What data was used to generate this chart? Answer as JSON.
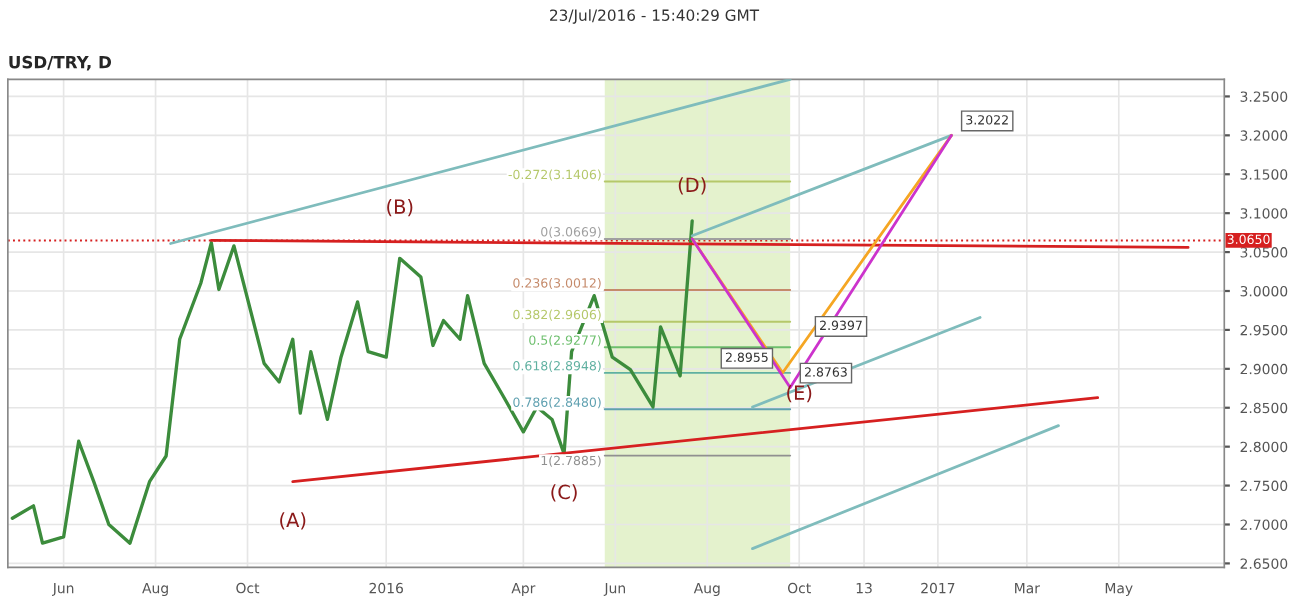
{
  "chart_data": {
    "type": "line",
    "title": "USD/TRY, D",
    "annotations": [
      "23/Jul/2016 - 15:40:29 GMT",
      {
        "text": "(A)",
        "x": "2015-10-31",
        "y": 2.755
      },
      {
        "text": "(B)",
        "x": "2016-01-10",
        "y": 3.062
      },
      {
        "text": "(C)",
        "x": "2016-04-28",
        "y": 2.791
      },
      {
        "text": "(D)",
        "x": "2016-07-22",
        "y": 3.09
      },
      {
        "text": "(E)",
        "x": "2016-10-01",
        "y": 2.823
      },
      {
        "text": "3.2022",
        "x": "2017-01-10",
        "y": 3.2
      },
      {
        "text": "2.9397",
        "x": "2016-10-05",
        "y": 2.936
      },
      {
        "text": "2.8955",
        "x": "2016-09-20",
        "y": 2.895
      },
      {
        "text": "2.8763",
        "x": "2016-09-25",
        "y": 2.876
      }
    ],
    "series": [
      {
        "color": "#3c8c3c",
        "x": [
          "2015-04-28",
          "2015-05-12",
          "2015-05-18",
          "2015-06-01",
          "2015-06-11",
          "2015-06-21",
          "2015-07-01",
          "2015-07-15",
          "2015-07-28",
          "2015-08-08",
          "2015-08-17",
          "2015-08-31",
          "2015-09-07",
          "2015-09-12",
          "2015-09-22",
          "2015-10-12",
          "2015-10-22",
          "2015-10-31",
          "2015-11-05",
          "2015-11-12",
          "2015-11-23",
          "2015-12-02",
          "2015-12-13",
          "2015-12-20",
          "2016-01-01",
          "2016-01-10",
          "2016-01-24",
          "2016-02-01",
          "2016-02-08",
          "2016-02-19",
          "2016-02-24",
          "2016-03-06",
          "2016-03-18",
          "2016-04-01",
          "2016-04-10",
          "2016-04-20",
          "2016-04-28",
          "2016-05-03",
          "2016-05-18",
          "2016-05-30",
          "2016-06-11",
          "2016-06-26",
          "2016-07-01",
          "2016-07-14",
          "2016-07-22"
        ],
        "values": [
          2.708,
          2.724,
          2.676,
          2.684,
          2.807,
          2.755,
          2.7,
          2.676,
          2.755,
          2.788,
          2.938,
          3.01,
          3.062,
          3.002,
          3.058,
          2.907,
          2.883,
          2.938,
          2.843,
          2.922,
          2.835,
          2.915,
          2.986,
          2.922,
          2.915,
          3.042,
          3.018,
          2.93,
          2.962,
          2.938,
          2.994,
          2.907,
          2.867,
          2.819,
          2.851,
          2.835,
          2.791,
          2.922,
          2.994,
          2.915,
          2.899,
          2.851,
          2.954,
          2.891,
          3.09
        ]
      },
      {
        "color": "#d62020",
        "x": [
          "2015-09-07",
          "2017-06-16"
        ],
        "values": [
          3.065,
          3.056
        ]
      },
      {
        "color": "#d62020",
        "x": [
          "2015-10-31",
          "2017-04-17"
        ],
        "values": [
          2.755,
          2.863
        ]
      },
      {
        "color": "#7fbcbc",
        "x": [
          "2015-08-11",
          "2016-09-25"
        ],
        "values": [
          3.061,
          3.272
        ]
      },
      {
        "color": "#7fbcbc",
        "x": [
          "2016-08-31",
          "2017-01-29"
        ],
        "values": [
          2.851,
          2.966
        ]
      },
      {
        "color": "#7fbcbc",
        "x": [
          "2016-08-31",
          "2017-03-22"
        ],
        "values": [
          2.669,
          2.827
        ]
      },
      {
        "color": "#7fbcbc",
        "x": [
          "2016-07-22",
          "2017-01-10"
        ],
        "values": [
          3.071,
          3.2
        ]
      },
      {
        "color": "#f5a623",
        "x": [
          "2016-07-22",
          "2016-09-20",
          "2017-01-10"
        ],
        "values": [
          3.067,
          2.895,
          3.2
        ]
      },
      {
        "color": "#cc33cc",
        "x": [
          "2016-07-22",
          "2016-09-25",
          "2017-01-10"
        ],
        "values": [
          3.067,
          2.876,
          3.2
        ]
      }
    ],
    "bands": [
      {
        "axis": "x",
        "from": "2016-05-25",
        "to": "2016-09-25",
        "color": "#d9ecb8"
      }
    ],
    "ref_lines": [
      {
        "axis": "y",
        "value": 3.065,
        "label": "3.0650",
        "color": "#d62020",
        "line_style": "dotted"
      },
      {
        "axis": "y",
        "value": 3.1406,
        "label": "-0.272(3.1406)",
        "color": "#b5c86a"
      },
      {
        "axis": "y",
        "value": 3.0669,
        "label": "0(3.0669)",
        "color": "#a0a0a0"
      },
      {
        "axis": "y",
        "value": 3.0012,
        "label": "0.236(3.0012)",
        "color": "#c58a6a"
      },
      {
        "axis": "y",
        "value": 2.9606,
        "label": "0.382(2.9606)",
        "color": "#b5c86a"
      },
      {
        "axis": "y",
        "value": 2.9277,
        "label": "0.5(2.9277)",
        "color": "#6dbf6d"
      },
      {
        "axis": "y",
        "value": 2.8948,
        "label": "0.618(2.8948)",
        "color": "#5fb0a0"
      },
      {
        "axis": "y",
        "value": 2.848,
        "label": "0.786(2.8480)",
        "color": "#5fa0b0"
      },
      {
        "axis": "y",
        "value": 2.7885,
        "label": "1(2.7885)",
        "color": "#909090"
      }
    ],
    "xlim": [
      "2015-04-25",
      "2017-07-10"
    ],
    "xticks": [
      {
        "value": "2015-06-01",
        "label": "Jun"
      },
      {
        "value": "2015-08-01",
        "label": "Aug"
      },
      {
        "value": "2015-10-01",
        "label": "Oct"
      },
      {
        "value": "2016-01-01",
        "label": "2016"
      },
      {
        "value": "2016-04-01",
        "label": "Apr"
      },
      {
        "value": "2016-06-01",
        "label": "Jun"
      },
      {
        "value": "2016-08-01",
        "label": "Aug"
      },
      {
        "value": "2016-10-01",
        "label": "Oct"
      },
      {
        "value": "2016-11-13",
        "label": "13"
      },
      {
        "value": "2017-01-01",
        "label": "2017"
      },
      {
        "value": "2017-03-01",
        "label": "Mar"
      },
      {
        "value": "2017-05-01",
        "label": "May"
      }
    ],
    "ylim": [
      2.645,
      3.272
    ],
    "yticks": [
      {
        "value": 2.65,
        "label": "2.6500"
      },
      {
        "value": 2.7,
        "label": "2.7000"
      },
      {
        "value": 2.75,
        "label": "2.7500"
      },
      {
        "value": 2.8,
        "label": "2.8000"
      },
      {
        "value": 2.85,
        "label": "2.8500"
      },
      {
        "value": 2.9,
        "label": "2.9000"
      },
      {
        "value": 2.95,
        "label": "2.9500"
      },
      {
        "value": 3.0,
        "label": "3.0000"
      },
      {
        "value": 3.05,
        "label": "3.0500"
      },
      {
        "value": 3.1,
        "label": "3.1000"
      },
      {
        "value": 3.15,
        "label": "3.1500"
      },
      {
        "value": 3.2,
        "label": "3.2000"
      },
      {
        "value": 3.25,
        "label": "3.2500"
      }
    ],
    "grid": true,
    "legend": false
  }
}
